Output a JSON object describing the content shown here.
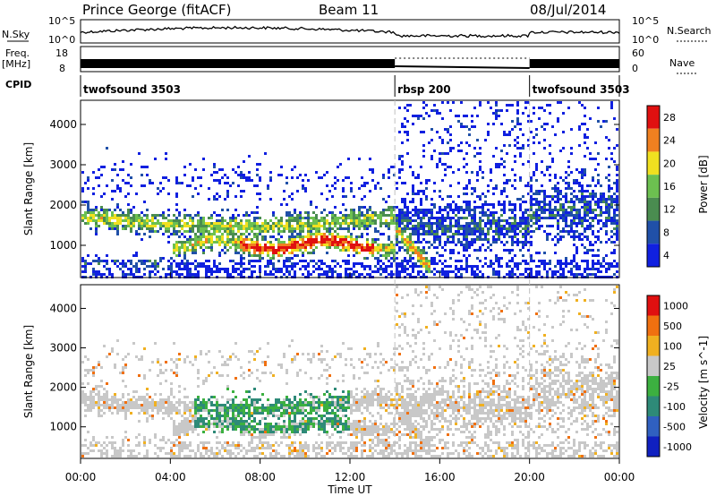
{
  "header": {
    "station": "Prince George (fitACF)",
    "beam": "Beam 11",
    "date": "08/Jul/2014"
  },
  "top_panels": {
    "nsky_label": "N.Sky",
    "nsearch_label": "N.Search",
    "count_ticks": [
      "10^5",
      "10^0"
    ],
    "freq_label_1": "Freq.",
    "freq_label_2": "[MHz]",
    "freq_ticks": [
      "18",
      "8"
    ],
    "nave_label": "Nave",
    "nave_ticks": [
      "60",
      "0"
    ],
    "cpid_label": "CPID"
  },
  "cpid_segments": [
    {
      "name": "twofsound 3503",
      "start_h": 0,
      "end_h": 14
    },
    {
      "name": "rbsp 200",
      "start_h": 14,
      "end_h": 20
    },
    {
      "name": "twofsound 3503",
      "start_h": 20,
      "end_h": 24
    }
  ],
  "chart_data": [
    {
      "type": "heatmap",
      "ylabel": "Slant Range [km]",
      "xlabel": "Time UT",
      "x_ticks": [
        "00:00",
        "04:00",
        "08:00",
        "12:00",
        "16:00",
        "20:00",
        "00:00"
      ],
      "xlim_hours": [
        0,
        24
      ],
      "ylim_km": [
        200,
        4600
      ],
      "y_ticks": [
        1000,
        2000,
        3000,
        4000
      ],
      "colorbar": {
        "label": "Power [dB]",
        "ticks": [
          "4",
          "8",
          "12",
          "16",
          "20",
          "24",
          "28"
        ],
        "colors": [
          "#1020e0",
          "#2050a8",
          "#4a8c50",
          "#6cc050",
          "#f0e020",
          "#f08020",
          "#e01010"
        ]
      }
    },
    {
      "type": "heatmap",
      "ylabel": "Slant Range [km]",
      "xlabel": "Time UT",
      "x_ticks": [
        "00:00",
        "04:00",
        "08:00",
        "12:00",
        "16:00",
        "20:00",
        "00:00"
      ],
      "xlim_hours": [
        0,
        24
      ],
      "ylim_km": [
        200,
        4600
      ],
      "y_ticks": [
        1000,
        2000,
        3000,
        4000
      ],
      "colorbar": {
        "label": "Velocity [m s^-1]",
        "ticks": [
          "1000",
          "500",
          "100",
          "25",
          "-25",
          "-100",
          "-500",
          "-1000"
        ],
        "colors": [
          "#1020c0",
          "#3060c0",
          "#2e8a78",
          "#3cb040",
          "#c8c8c8",
          "#f0b020",
          "#f07010",
          "#e01010"
        ]
      }
    }
  ],
  "colors": {
    "ground_scatter": "#c8c8c8",
    "axis": "#000000"
  }
}
